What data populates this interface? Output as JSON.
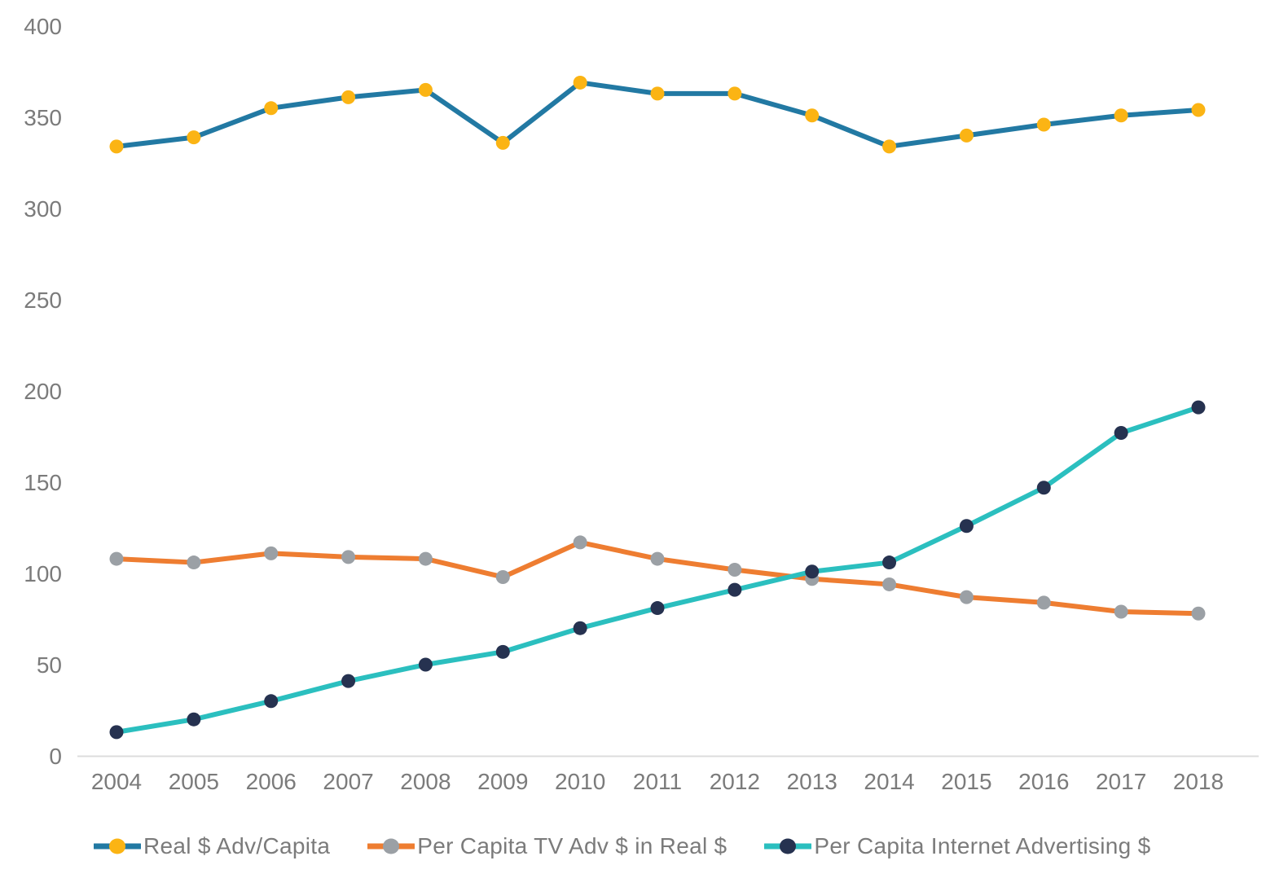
{
  "page": {
    "background_color": "#ffffff",
    "label_color": "#7b7b7b",
    "axis_line_color": "#dcdcdc"
  },
  "chart_data": {
    "type": "line",
    "title": "",
    "xlabel": "",
    "ylabel": "",
    "x": [
      2004,
      2005,
      2006,
      2007,
      2008,
      2009,
      2010,
      2011,
      2012,
      2013,
      2014,
      2015,
      2016,
      2017,
      2018
    ],
    "series": [
      {
        "name": "Real $ Adv/Capita",
        "line_color": "#2279a3",
        "marker_color": "#fbb414",
        "values": [
          334,
          339,
          355,
          361,
          365,
          336,
          369,
          363,
          363,
          351,
          334,
          340,
          346,
          351,
          354
        ]
      },
      {
        "name": "Per Capita TV Adv $ in Real $",
        "line_color": "#ee7d31",
        "marker_color": "#9ba0a5",
        "values": [
          108,
          106,
          111,
          109,
          108,
          98,
          117,
          108,
          102,
          97,
          94,
          87,
          84,
          79,
          78
        ]
      },
      {
        "name": "Per Capita Internet Advertising $",
        "line_color": "#2bbfbf",
        "marker_color": "#263250",
        "values": [
          13,
          20,
          30,
          41,
          50,
          57,
          70,
          81,
          91,
          101,
          106,
          126,
          147,
          177,
          191
        ]
      }
    ],
    "ylim": [
      0,
      400
    ],
    "yticks": [
      0,
      50,
      100,
      150,
      200,
      250,
      300,
      350,
      400
    ],
    "grid": false,
    "legend_position": "bottom"
  }
}
